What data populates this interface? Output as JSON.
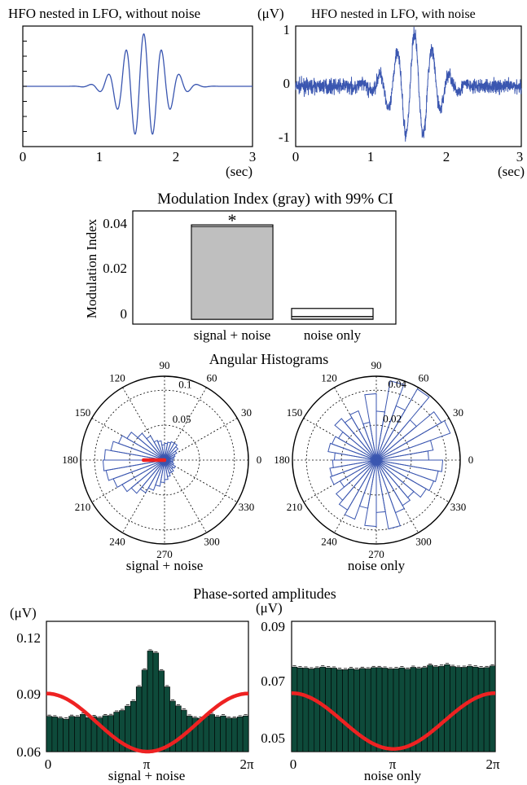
{
  "colors": {
    "trace": "#3a56b0",
    "mi_bar": "#bfbfbf",
    "hist_fill": "#0e4a3a",
    "cosine": "#ee2222",
    "rose": "#3a56b0",
    "mean_vector": "#ee2222"
  },
  "chart_data": [
    {
      "id": "trace-clean",
      "type": "line",
      "title": "HFO nested in LFO, without noise",
      "xlabel": "(sec)",
      "xlim": [
        0,
        3
      ],
      "ylim": [
        -1.15,
        1.15
      ],
      "xticks": [
        "0",
        "1",
        "2",
        "3"
      ],
      "signal": {
        "lfo_center": 1.58,
        "lfo_width": 0.38,
        "hfo_hz": 4.3,
        "amplitude": 1.0
      },
      "noise": 0
    },
    {
      "id": "trace-noisy",
      "type": "line",
      "title": "HFO nested in LFO, with noise",
      "ylabel": "(μV)",
      "xlabel": "(sec)",
      "xlim": [
        0,
        3
      ],
      "ylim": [
        -1.15,
        1.15
      ],
      "xticks": [
        "0",
        "1",
        "2",
        "3"
      ],
      "yticks": [
        "1",
        "0",
        "-1"
      ],
      "signal": {
        "lfo_center": 1.58,
        "lfo_width": 0.38,
        "hfo_hz": 4.3,
        "amplitude": 1.0
      },
      "noise": 0.13
    },
    {
      "id": "mi",
      "type": "bar",
      "title": "Modulation Index (gray) with 99% CI",
      "ylabel": "Modulation Index",
      "ylim": [
        -0.002,
        0.045
      ],
      "yticks": [
        "0.04",
        "0.02",
        "0"
      ],
      "categories": [
        "signal + noise",
        "noise only"
      ],
      "values": [
        0.0385,
        0.0012
      ],
      "ci_upper": [
        0.0392,
        0.0045
      ],
      "annotation": "*"
    },
    {
      "id": "rose-signal",
      "type": "polar-histogram",
      "group_title": "Angular Histograms",
      "caption": "signal + noise",
      "rmax": 0.12,
      "angle_labels": [
        "0",
        "30",
        "60",
        "90",
        "120",
        "150",
        "180",
        "210",
        "240",
        "270",
        "300",
        "330"
      ],
      "r_labels": [
        "0.05",
        "0.1"
      ],
      "bins": 36,
      "values": [
        0.012,
        0.014,
        0.016,
        0.02,
        0.025,
        0.028,
        0.028,
        0.026,
        0.024,
        0.022,
        0.028,
        0.03,
        0.04,
        0.05,
        0.062,
        0.07,
        0.078,
        0.086,
        0.088,
        0.085,
        0.078,
        0.07,
        0.062,
        0.054,
        0.046,
        0.038,
        0.032,
        0.028,
        0.024,
        0.02,
        0.02,
        0.016,
        0.018,
        0.014,
        0.012,
        0.012
      ],
      "mean_vector": {
        "angle": 180,
        "length": 0.03
      }
    },
    {
      "id": "rose-noise",
      "type": "polar-histogram",
      "caption": "noise only",
      "rmax": 0.048,
      "angle_labels": [
        "0",
        "30",
        "60",
        "90",
        "120",
        "150",
        "180",
        "210",
        "240",
        "270",
        "300",
        "330"
      ],
      "r_labels": [
        "0.02",
        "0.04"
      ],
      "bins": 36,
      "values": [
        0.03,
        0.033,
        0.045,
        0.043,
        0.03,
        0.047,
        0.033,
        0.046,
        0.028,
        0.038,
        0.022,
        0.03,
        0.028,
        0.031,
        0.025,
        0.027,
        0.028,
        0.024,
        0.025,
        0.027,
        0.028,
        0.024,
        0.03,
        0.033,
        0.036,
        0.028,
        0.038,
        0.03,
        0.04,
        0.032,
        0.03,
        0.028,
        0.033,
        0.035,
        0.036,
        0.038
      ]
    },
    {
      "id": "phase-signal",
      "type": "bar",
      "group_title": "Phase-sorted amplitudes",
      "ylabel": "(μV)",
      "xlabel": "signal + noise",
      "ylim": [
        0.06,
        0.125
      ],
      "xticks": [
        "0",
        "π",
        "2π"
      ],
      "yticks": [
        "0.12",
        "0.09",
        "0.06"
      ],
      "bins": 36,
      "values": [
        0.0776,
        0.0773,
        0.0767,
        0.0762,
        0.0776,
        0.0773,
        0.0786,
        0.0769,
        0.0775,
        0.0768,
        0.0779,
        0.078,
        0.0797,
        0.0805,
        0.0827,
        0.0851,
        0.0923,
        0.1007,
        0.1102,
        0.1092,
        0.1003,
        0.0923,
        0.0852,
        0.0828,
        0.0807,
        0.0777,
        0.0768,
        0.0766,
        0.0777,
        0.0785,
        0.0773,
        0.0778,
        0.0767,
        0.0767,
        0.0773,
        0.0778
      ],
      "cosine": {
        "min": 0.06,
        "max": 0.089
      }
    },
    {
      "id": "phase-noise",
      "type": "bar",
      "ylabel": "(μV)",
      "xlabel": "noise only",
      "ylim": [
        0.043,
        0.092
      ],
      "xticks": [
        "0",
        "π",
        "2π"
      ],
      "yticks": [
        "0.09",
        "0.07",
        "0.05"
      ],
      "bins": 36,
      "values": [
        0.0748,
        0.0745,
        0.0744,
        0.0741,
        0.0744,
        0.0748,
        0.0745,
        0.0744,
        0.0739,
        0.0738,
        0.0742,
        0.0739,
        0.0743,
        0.0741,
        0.0746,
        0.0746,
        0.0744,
        0.0741,
        0.0742,
        0.0745,
        0.074,
        0.0747,
        0.0743,
        0.0746,
        0.0755,
        0.0749,
        0.0751,
        0.0757,
        0.075,
        0.0747,
        0.0747,
        0.0751,
        0.0748,
        0.0745,
        0.0746,
        0.0752
      ],
      "cosine": {
        "min": 0.044,
        "max": 0.065
      }
    }
  ]
}
